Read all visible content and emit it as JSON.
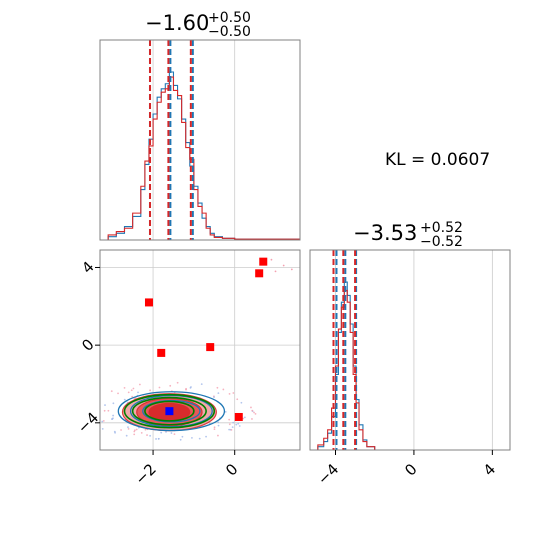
{
  "chart_data": {
    "type": "corner",
    "annotation": "KL = 0.0607",
    "params": [
      {
        "title": {
          "median": "−1.60",
          "plus": "+0.50",
          "minus": "−0.50"
        },
        "range": [
          -3.3,
          1.6
        ],
        "ticks": [
          -2,
          0
        ],
        "tick_labels": [
          "−2",
          "0"
        ],
        "quantiles_blue": [
          -2.1,
          -1.6,
          -1.05
        ],
        "quantiles_red": [
          -2.05,
          -1.6,
          -1.05
        ],
        "hist_blue": [
          [
            -3.3,
            0
          ],
          [
            -3.1,
            0.02
          ],
          [
            -2.9,
            0.04
          ],
          [
            -2.7,
            0.08
          ],
          [
            -2.5,
            0.14
          ],
          [
            -2.3,
            0.3
          ],
          [
            -2.2,
            0.45
          ],
          [
            -2.1,
            0.6
          ],
          [
            -2.0,
            0.75
          ],
          [
            -1.9,
            0.85
          ],
          [
            -1.8,
            0.9
          ],
          [
            -1.7,
            0.93
          ],
          [
            -1.6,
            1.0
          ],
          [
            -1.5,
            0.92
          ],
          [
            -1.4,
            0.84
          ],
          [
            -1.3,
            0.72
          ],
          [
            -1.2,
            0.58
          ],
          [
            -1.1,
            0.44
          ],
          [
            -1.0,
            0.32
          ],
          [
            -0.9,
            0.22
          ],
          [
            -0.8,
            0.13
          ],
          [
            -0.7,
            0.08
          ],
          [
            -0.6,
            0.04
          ],
          [
            -0.5,
            0.02
          ],
          [
            -0.3,
            0.01
          ],
          [
            0.0,
            0.005
          ],
          [
            1.6,
            0
          ]
        ],
        "hist_red": [
          [
            -3.3,
            0
          ],
          [
            -3.1,
            0.03
          ],
          [
            -2.9,
            0.05
          ],
          [
            -2.7,
            0.07
          ],
          [
            -2.5,
            0.16
          ],
          [
            -2.3,
            0.32
          ],
          [
            -2.2,
            0.47
          ],
          [
            -2.1,
            0.56
          ],
          [
            -2.0,
            0.72
          ],
          [
            -1.9,
            0.82
          ],
          [
            -1.8,
            0.88
          ],
          [
            -1.7,
            0.9
          ],
          [
            -1.6,
            0.97
          ],
          [
            -1.5,
            0.89
          ],
          [
            -1.4,
            0.86
          ],
          [
            -1.3,
            0.7
          ],
          [
            -1.2,
            0.55
          ],
          [
            -1.1,
            0.48
          ],
          [
            -1.0,
            0.3
          ],
          [
            -0.9,
            0.2
          ],
          [
            -0.8,
            0.16
          ],
          [
            -0.7,
            0.07
          ],
          [
            -0.6,
            0.03
          ],
          [
            -0.5,
            0.015
          ],
          [
            -0.3,
            0.01
          ],
          [
            0.0,
            0.005
          ],
          [
            1.6,
            0
          ]
        ]
      },
      {
        "title": {
          "median": "−3.53",
          "plus": "+0.52",
          "minus": "−0.52"
        },
        "range": [
          -5.3,
          4.9
        ],
        "ticks": [
          -4,
          0,
          4
        ],
        "tick_labels": [
          "−4",
          "0",
          "4"
        ],
        "quantiles_blue": [
          -4.0,
          -3.55,
          -3.0
        ],
        "quantiles_red": [
          -4.05,
          -3.55,
          -2.95
        ],
        "hist_blue": [
          [
            -5.3,
            0
          ],
          [
            -4.9,
            0.02
          ],
          [
            -4.6,
            0.05
          ],
          [
            -4.4,
            0.1
          ],
          [
            -4.2,
            0.2
          ],
          [
            -4.0,
            0.45
          ],
          [
            -3.85,
            0.7
          ],
          [
            -3.7,
            0.88
          ],
          [
            -3.55,
            1.0
          ],
          [
            -3.4,
            0.92
          ],
          [
            -3.25,
            0.75
          ],
          [
            -3.1,
            0.5
          ],
          [
            -2.95,
            0.3
          ],
          [
            -2.8,
            0.15
          ],
          [
            -2.6,
            0.06
          ],
          [
            -2.4,
            0.02
          ],
          [
            -2.0,
            0
          ],
          [
            4.9,
            0
          ]
        ],
        "hist_red": [
          [
            -5.3,
            0
          ],
          [
            -4.9,
            0.03
          ],
          [
            -4.6,
            0.07
          ],
          [
            -4.4,
            0.12
          ],
          [
            -4.2,
            0.25
          ],
          [
            -4.0,
            0.5
          ],
          [
            -3.85,
            0.72
          ],
          [
            -3.7,
            0.85
          ],
          [
            -3.55,
            0.95
          ],
          [
            -3.4,
            0.88
          ],
          [
            -3.25,
            0.7
          ],
          [
            -3.1,
            0.45
          ],
          [
            -2.95,
            0.28
          ],
          [
            -2.8,
            0.12
          ],
          [
            -2.6,
            0.05
          ],
          [
            -2.4,
            0.02
          ],
          [
            -2.0,
            0
          ],
          [
            4.9,
            0
          ]
        ]
      }
    ],
    "scatter": {
      "xlim": [
        -3.3,
        1.6
      ],
      "ylim": [
        -5.4,
        4.9
      ],
      "xticks": [
        -2,
        0
      ],
      "xtick_labels": [
        "−2",
        "0"
      ],
      "yticks": [
        4,
        0,
        -4
      ],
      "ytick_labels": [
        "4",
        "0",
        "−4"
      ],
      "red_squares": [
        [
          -2.1,
          2.2
        ],
        [
          -1.8,
          -0.4
        ],
        [
          -0.6,
          -0.1
        ],
        [
          0.6,
          3.7
        ],
        [
          0.7,
          4.3
        ],
        [
          0.1,
          -3.7
        ]
      ],
      "blue_square": [
        -1.6,
        -3.4
      ],
      "contour_center": [
        -1.6,
        -3.4
      ],
      "contours_red_filled": [
        [
          1.15,
          0.95
        ],
        [
          0.8,
          0.7
        ],
        [
          0.5,
          0.45
        ]
      ],
      "contours_blue": [
        [
          1.3,
          1.0
        ],
        [
          1.0,
          0.8
        ],
        [
          0.7,
          0.55
        ]
      ],
      "contours_green": [
        [
          1.1,
          0.85
        ],
        [
          0.9,
          0.7
        ],
        [
          0.6,
          0.5
        ]
      ]
    },
    "colors": {
      "blue": "#1f77b4",
      "red": "#d62728",
      "green": "#008000",
      "red_fill": "#e03030"
    }
  }
}
